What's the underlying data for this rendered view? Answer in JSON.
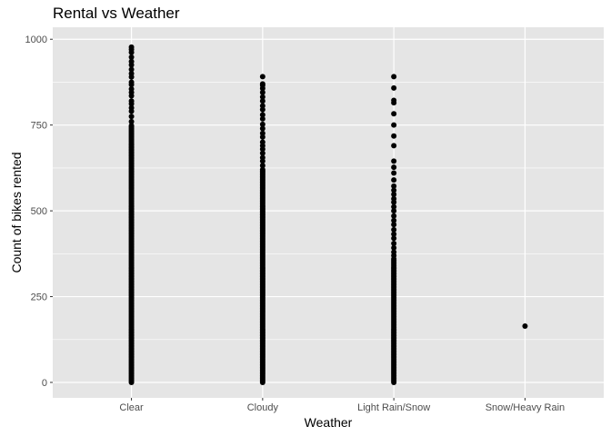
{
  "chart_data": {
    "type": "scatter",
    "title": "Rental vs Weather",
    "xlabel": "Weather",
    "ylabel": "Count of bikes rented",
    "categories": [
      "Clear",
      "Cloudy",
      "Light Rain/Snow",
      "Snow/Heavy Rain"
    ],
    "ylim": [
      -45,
      1035
    ],
    "yticks": [
      0,
      250,
      500,
      750,
      1000
    ],
    "grid": true,
    "background": "#e5e5e5",
    "gridline_color": "#ffffff",
    "point_color": "#000000",
    "series": [
      {
        "category": "Clear",
        "dense_range": [
          0,
          750
        ],
        "points": [
          760,
          775,
          790,
          800,
          812,
          820,
          835,
          845,
          855,
          868,
          875,
          890,
          900,
          912,
          925,
          935,
          948,
          962,
          970,
          977
        ]
      },
      {
        "category": "Cloudy",
        "dense_range": [
          0,
          620
        ],
        "points": [
          632,
          645,
          655,
          668,
          680,
          690,
          700,
          715,
          726,
          740,
          752,
          768,
          780,
          795,
          806,
          820,
          832,
          845,
          857,
          866,
          870,
          891
        ]
      },
      {
        "category": "Light Rain/Snow",
        "dense_range": [
          0,
          360
        ],
        "points": [
          370,
          380,
          392,
          405,
          420,
          432,
          445,
          460,
          472,
          485,
          500,
          512,
          525,
          535,
          548,
          560,
          572,
          590,
          610,
          627,
          645,
          690,
          718,
          750,
          783,
          815,
          822,
          858,
          891
        ]
      },
      {
        "category": "Snow/Heavy Rain",
        "points": [
          164
        ]
      }
    ]
  }
}
